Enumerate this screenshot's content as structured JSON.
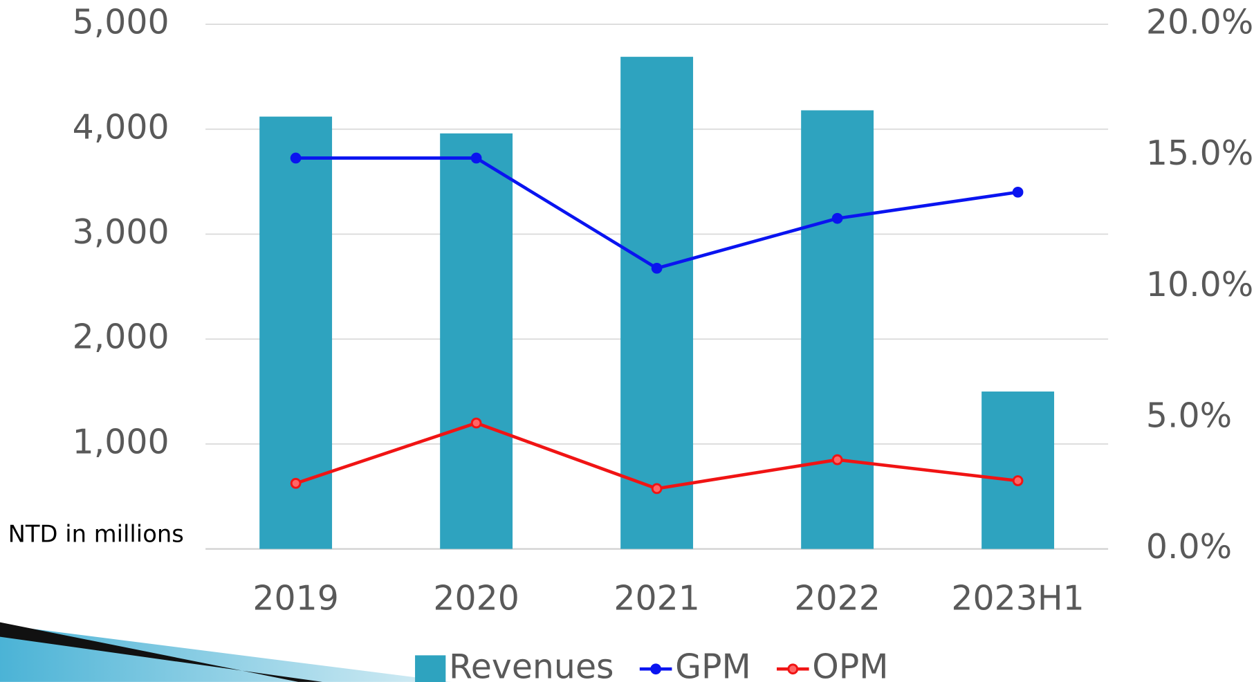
{
  "chart_data": {
    "type": "bar-line",
    "ylabel": "NTD in millions",
    "categories": [
      "2019",
      "2020",
      "2021",
      "2022",
      "2023H1"
    ],
    "series": [
      {
        "name": "Revenues",
        "type": "bar",
        "color": "#2ea3bf",
        "values": [
          4120,
          3960,
          4690,
          4180,
          1500
        ]
      },
      {
        "name": "GPM",
        "type": "line",
        "axis": "y2",
        "color": "#0a14f0",
        "values": [
          14.9,
          14.9,
          10.7,
          12.6,
          13.6
        ]
      },
      {
        "name": "OPM",
        "type": "line",
        "axis": "y2",
        "color": "#f01414",
        "values": [
          2.5,
          4.8,
          2.3,
          3.4,
          2.6
        ]
      }
    ],
    "ylim": [
      0,
      5000
    ],
    "yticks": [
      {
        "value": 1000,
        "label": "1,000"
      },
      {
        "value": 2000,
        "label": "2,000"
      },
      {
        "value": 3000,
        "label": "3,000"
      },
      {
        "value": 4000,
        "label": "4,000"
      },
      {
        "value": 5000,
        "label": "5,000"
      }
    ],
    "y2lim": [
      0,
      20
    ],
    "y2ticks": [
      {
        "value": 0,
        "label": "0.0%"
      },
      {
        "value": 5,
        "label": "5.0%"
      },
      {
        "value": 10,
        "label": "10.0%"
      },
      {
        "value": 15,
        "label": "15.0%"
      },
      {
        "value": 20,
        "label": "20.0%"
      }
    ],
    "grid": true,
    "legend": "bottom"
  }
}
